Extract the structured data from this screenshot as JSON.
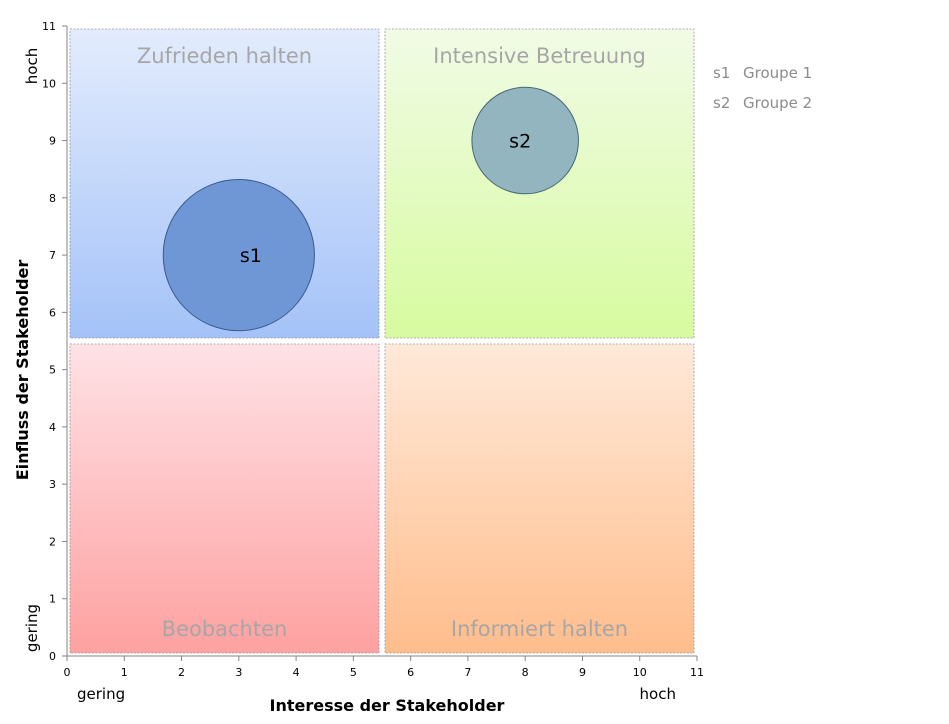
{
  "chart_data": {
    "type": "bubble",
    "xlabel": "Interesse der Stakeholder",
    "ylabel": "Einfluss der Stakeholder",
    "xlim": [
      0,
      11
    ],
    "ylim": [
      0,
      11
    ],
    "x_ticks": [
      0,
      1,
      2,
      3,
      4,
      5,
      6,
      7,
      8,
      9,
      10,
      11
    ],
    "y_ticks": [
      0,
      1,
      2,
      3,
      4,
      5,
      6,
      7,
      8,
      9,
      10,
      11
    ],
    "x_end_labels": {
      "low": "gering",
      "high": "hoch"
    },
    "y_end_labels": {
      "low": "gering",
      "high": "hoch"
    },
    "quadrants": [
      {
        "label": "Zufrieden halten",
        "x_range": [
          0,
          5.5
        ],
        "y_range": [
          5.5,
          11
        ],
        "color_top": "#e3ecfd",
        "color_bottom": "#a4c2f8"
      },
      {
        "label": "Intensive Betreuung",
        "x_range": [
          5.5,
          11
        ],
        "y_range": [
          5.5,
          11
        ],
        "color_top": "#f1fbe6",
        "color_bottom": "#d7fb9f"
      },
      {
        "label": "Beobachten",
        "x_range": [
          0,
          5.5
        ],
        "y_range": [
          0,
          5.5
        ],
        "color_top": "#fee2e6",
        "color_bottom": "#fea1a1"
      },
      {
        "label": "Informiert halten",
        "x_range": [
          5.5,
          11
        ],
        "y_range": [
          0,
          5.5
        ],
        "color_top": "#ffe9d9",
        "color_bottom": "#ffbd8c"
      }
    ],
    "series": [
      {
        "id": "s1",
        "name": "Groupe 1",
        "x": 3,
        "y": 7,
        "radius": 1.32,
        "color": "#6f97d6",
        "stroke": "#3a5b8f"
      },
      {
        "id": "s2",
        "name": "Groupe 2",
        "x": 8,
        "y": 9,
        "radius": 0.93,
        "color": "#93b5c0",
        "stroke": "#466873"
      }
    ],
    "legend": [
      {
        "id": "s1",
        "name": "Groupe 1"
      },
      {
        "id": "s2",
        "name": "Groupe 2"
      }
    ],
    "legend_position": "right",
    "grid": false
  }
}
